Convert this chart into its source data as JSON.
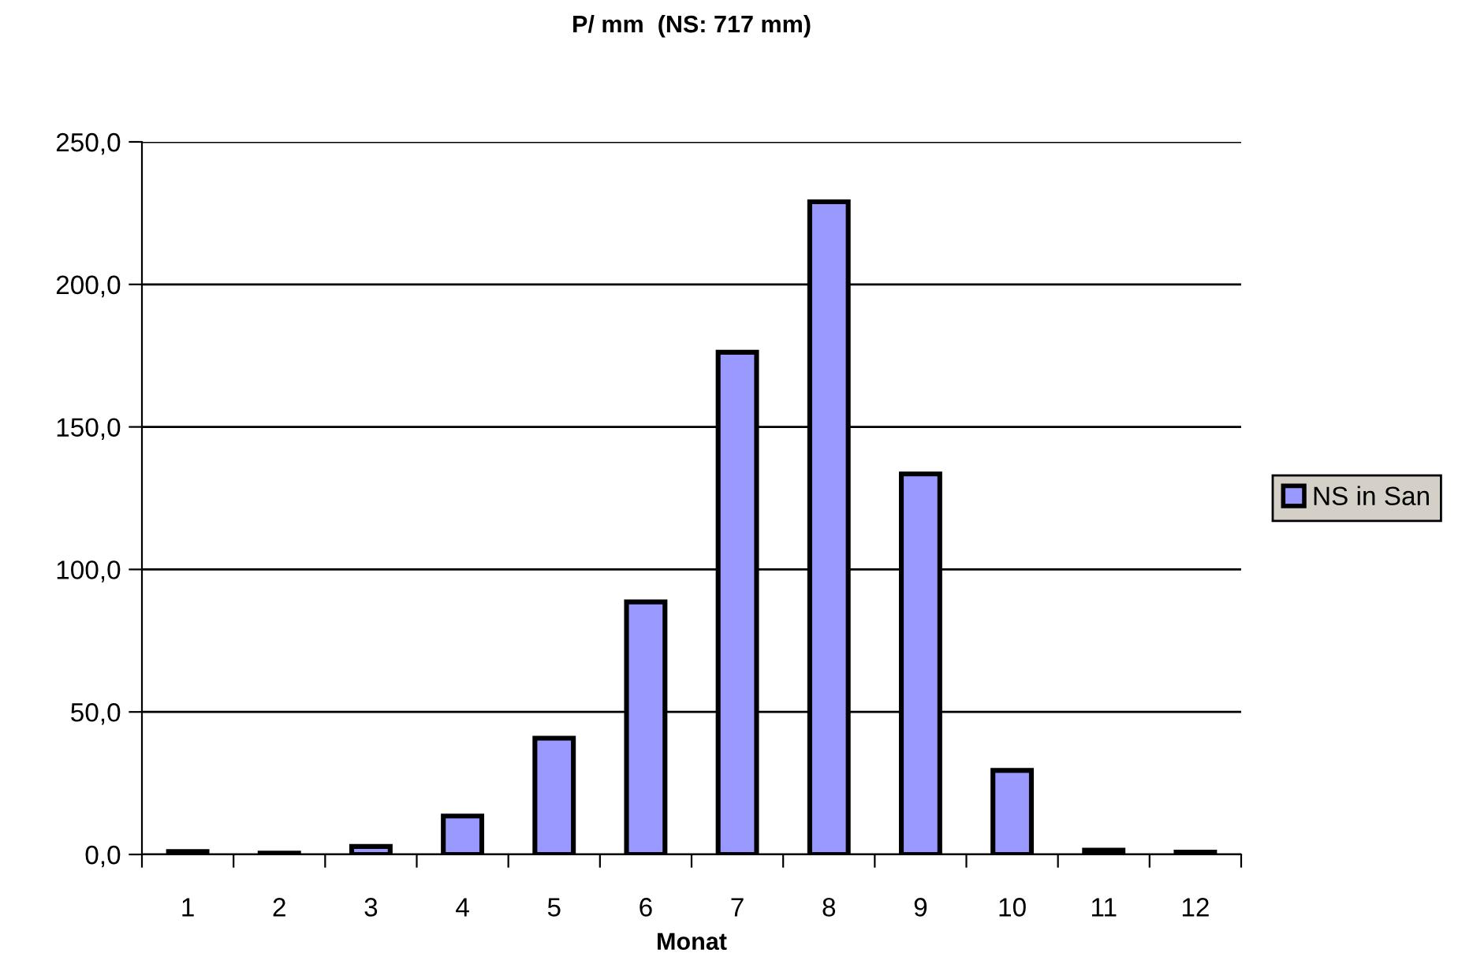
{
  "chart_data": {
    "type": "bar",
    "title": "P/ mm  (NS: 717 mm)",
    "xlabel": "Monat",
    "categories": [
      "1",
      "2",
      "3",
      "4",
      "5",
      "6",
      "7",
      "8",
      "9",
      "10",
      "11",
      "12"
    ],
    "series": [
      {
        "name": "NS in San",
        "color": "#9999ff",
        "values": [
          1,
          0.5,
          2.8,
          13.5,
          40.8,
          88.6,
          176.2,
          229,
          133.5,
          29.5,
          1.5,
          0.8
        ]
      }
    ],
    "ylim": [
      0,
      250
    ],
    "yticks": [
      {
        "value": 0,
        "label": "0,0"
      },
      {
        "value": 50,
        "label": "50,0"
      },
      {
        "value": 100,
        "label": "100,0"
      },
      {
        "value": 150,
        "label": "150,0"
      },
      {
        "value": 200,
        "label": "200,0"
      },
      {
        "value": 250,
        "label": "250,0"
      }
    ],
    "grid": "y",
    "legend": "right"
  }
}
